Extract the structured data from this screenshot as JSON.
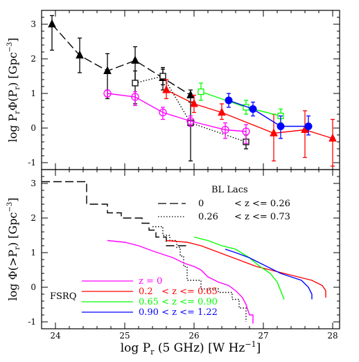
{
  "colors": {
    "bl_low": "#000000",
    "bl_high": "#000000",
    "fsrq_z0": "#ff00ff",
    "fsrq_z1": "#ff0000",
    "fsrq_z2": "#00ff00",
    "fsrq_z3": "#0000ff"
  },
  "chart_data": [
    {
      "type": "line",
      "panel": "top",
      "xlim": [
        23.8,
        28.1
      ],
      "ylim": [
        -1.2,
        3.4
      ],
      "ylabel_math": {
        "pre": "log P",
        "sub1": "r",
        "mid": "Φ(P",
        "sub2": "r",
        "post": ") [Gpc",
        "sup": "−3",
        "end": "]"
      },
      "yticks": [
        -1,
        0,
        1,
        2,
        3
      ],
      "series": [
        {
          "key": "bl_low",
          "marker": "tri-fill",
          "dash": "long",
          "points": [
            {
              "x": 23.95,
              "y": 3.0,
              "lo": 2.25,
              "hi": 3.25
            },
            {
              "x": 24.35,
              "y": 2.1,
              "lo": 1.6,
              "hi": 2.6
            },
            {
              "x": 24.75,
              "y": 1.65,
              "lo": 0.85,
              "hi": 2.15
            },
            {
              "x": 25.15,
              "y": 1.95,
              "lo": 1.35,
              "hi": 2.35
            },
            {
              "x": 25.55,
              "y": 1.45,
              "lo": 1.1,
              "hi": 1.75
            },
            {
              "x": 25.95,
              "y": 0.95,
              "lo": 0.75,
              "hi": 1.1
            }
          ]
        },
        {
          "key": "bl_high",
          "marker": "sq-open",
          "dash": "dot",
          "points": [
            {
              "x": 25.15,
              "y": 1.3,
              "lo": 0.7,
              "hi": 1.65
            },
            {
              "x": 25.55,
              "y": 1.5,
              "lo": 1.25,
              "hi": 1.7
            },
            {
              "x": 25.95,
              "y": 0.15,
              "lo": -0.95,
              "hi": 0.75
            },
            {
              "x": 26.75,
              "y": -0.4,
              "lo": -0.6,
              "hi": -0.2
            }
          ]
        },
        {
          "key": "fsrq_z0",
          "marker": "circ-open",
          "dash": "solid",
          "points": [
            {
              "x": 24.75,
              "y": 1.0,
              "lo": 0.9,
              "hi": 1.1
            },
            {
              "x": 25.15,
              "y": 0.9,
              "lo": 0.65,
              "hi": 1.05
            },
            {
              "x": 25.55,
              "y": 0.45,
              "lo": 0.25,
              "hi": 0.6
            },
            {
              "x": 25.95,
              "y": 0.2,
              "lo": 0.05,
              "hi": 0.35
            },
            {
              "x": 26.45,
              "y": -0.05,
              "lo": -0.3,
              "hi": 0.15
            },
            {
              "x": 26.75,
              "y": -0.1,
              "lo": -0.45,
              "hi": 0.1
            }
          ]
        },
        {
          "key": "fsrq_z1",
          "marker": "tri-fill",
          "dash": "solid",
          "points": [
            {
              "x": 25.6,
              "y": 1.1,
              "lo": 0.85,
              "hi": 1.4
            },
            {
              "x": 26.0,
              "y": 0.7,
              "lo": 0.45,
              "hi": 0.95
            },
            {
              "x": 26.4,
              "y": 0.45,
              "lo": 0.25,
              "hi": 0.7
            },
            {
              "x": 27.15,
              "y": -0.15,
              "lo": -0.95,
              "hi": 0.4
            },
            {
              "x": 27.6,
              "y": -0.05,
              "lo": -0.85,
              "hi": 0.5
            },
            {
              "x": 28.0,
              "y": -0.3,
              "lo": -1.1,
              "hi": 0.25
            }
          ]
        },
        {
          "key": "fsrq_z2",
          "marker": "sq-open",
          "dash": "solid",
          "points": [
            {
              "x": 26.1,
              "y": 1.05,
              "lo": 0.8,
              "hi": 1.3
            },
            {
              "x": 26.75,
              "y": 0.6,
              "lo": 0.4,
              "hi": 0.8
            },
            {
              "x": 27.25,
              "y": 0.35,
              "lo": 0.15,
              "hi": 0.55
            }
          ]
        },
        {
          "key": "fsrq_z3",
          "marker": "circ-fill",
          "dash": "solid",
          "points": [
            {
              "x": 26.5,
              "y": 0.8,
              "lo": 0.6,
              "hi": 1.0
            },
            {
              "x": 26.85,
              "y": 0.55,
              "lo": 0.35,
              "hi": 0.75
            },
            {
              "x": 27.25,
              "y": 0.05,
              "lo": -0.3,
              "hi": 0.35
            },
            {
              "x": 27.65,
              "y": 0.05,
              "lo": -0.2,
              "hi": 0.35
            }
          ]
        }
      ]
    },
    {
      "type": "line",
      "panel": "bottom",
      "xlim": [
        23.8,
        28.1
      ],
      "ylim": [
        -1.2,
        3.4
      ],
      "ylabel_math": {
        "pre": "log Φ(>P",
        "sub1": "r",
        "post": ") [Gpc",
        "sup": "−3",
        "end": "]"
      },
      "xlabel_math": {
        "pre": "log P",
        "sub1": "r",
        "post": " (5 GHz) [W Hz",
        "sup": "−1",
        "end": "]"
      },
      "yticks": [
        -1,
        0,
        1,
        2,
        3
      ],
      "xticks": [
        24,
        25,
        26,
        27,
        28
      ],
      "series": [
        {
          "key": "bl_low",
          "dash": "long",
          "points": [
            [
              23.8,
              3.05
            ],
            [
              24.45,
              3.05
            ],
            [
              24.45,
              2.4
            ],
            [
              24.75,
              2.4
            ],
            [
              24.75,
              2.15
            ],
            [
              24.95,
              2.15
            ],
            [
              24.95,
              2.0
            ],
            [
              25.25,
              2.0
            ],
            [
              25.25,
              1.85
            ],
            [
              25.35,
              1.85
            ],
            [
              25.35,
              1.65
            ],
            [
              25.45,
              1.65
            ],
            [
              25.45,
              1.45
            ],
            [
              25.6,
              1.45
            ],
            [
              25.6,
              1.2
            ],
            [
              25.9,
              1.2
            ]
          ]
        },
        {
          "key": "bl_high",
          "dash": "dot",
          "points": [
            [
              25.4,
              1.75
            ],
            [
              25.55,
              1.75
            ],
            [
              25.55,
              1.5
            ],
            [
              25.65,
              1.5
            ],
            [
              25.65,
              1.35
            ],
            [
              25.75,
              1.35
            ],
            [
              25.75,
              1.15
            ],
            [
              25.8,
              1.15
            ],
            [
              25.8,
              0.9
            ],
            [
              25.85,
              0.9
            ],
            [
              25.85,
              0.6
            ],
            [
              25.9,
              0.6
            ],
            [
              25.9,
              0.2
            ],
            [
              26.1,
              0.2
            ],
            [
              26.1,
              -0.05
            ],
            [
              26.35,
              -0.05
            ],
            [
              26.35,
              -0.15
            ],
            [
              26.55,
              -0.15
            ],
            [
              26.55,
              -0.35
            ],
            [
              26.65,
              -0.35
            ],
            [
              26.65,
              -0.6
            ],
            [
              26.75,
              -0.6
            ],
            [
              26.75,
              -1.0
            ]
          ]
        },
        {
          "key": "fsrq_z0",
          "dash": "solid",
          "points": [
            [
              24.75,
              1.35
            ],
            [
              25.0,
              1.3
            ],
            [
              25.2,
              1.2
            ],
            [
              25.4,
              1.05
            ],
            [
              25.55,
              0.95
            ],
            [
              25.7,
              0.85
            ],
            [
              25.85,
              0.7
            ],
            [
              26.0,
              0.6
            ],
            [
              26.1,
              0.5
            ],
            [
              26.2,
              0.3
            ],
            [
              26.35,
              0.15
            ],
            [
              26.5,
              0.05
            ],
            [
              26.6,
              -0.1
            ],
            [
              26.7,
              -0.3
            ],
            [
              26.75,
              -0.5
            ],
            [
              26.8,
              -0.8
            ],
            [
              26.85,
              -0.8
            ],
            [
              26.85,
              -1.05
            ]
          ]
        },
        {
          "key": "fsrq_z1",
          "dash": "solid",
          "points": [
            [
              25.6,
              1.35
            ],
            [
              25.9,
              1.3
            ],
            [
              26.1,
              1.2
            ],
            [
              26.3,
              1.05
            ],
            [
              26.5,
              0.9
            ],
            [
              26.7,
              0.75
            ],
            [
              26.9,
              0.6
            ],
            [
              27.1,
              0.5
            ],
            [
              27.3,
              0.4
            ],
            [
              27.5,
              0.3
            ],
            [
              27.7,
              0.2
            ],
            [
              27.85,
              0.05
            ],
            [
              27.9,
              -0.1
            ],
            [
              27.9,
              -0.3
            ]
          ]
        },
        {
          "key": "fsrq_z2",
          "dash": "solid",
          "points": [
            [
              26.0,
              1.45
            ],
            [
              26.2,
              1.35
            ],
            [
              26.4,
              1.2
            ],
            [
              26.6,
              1.1
            ],
            [
              26.8,
              0.85
            ],
            [
              26.95,
              0.6
            ],
            [
              27.1,
              0.4
            ],
            [
              27.2,
              0.15
            ],
            [
              27.25,
              -0.1
            ],
            [
              27.3,
              -0.35
            ]
          ]
        },
        {
          "key": "fsrq_z3",
          "dash": "solid",
          "points": [
            [
              26.45,
              1.1
            ],
            [
              26.6,
              1.0
            ],
            [
              26.8,
              0.85
            ],
            [
              26.95,
              0.7
            ],
            [
              27.1,
              0.55
            ],
            [
              27.25,
              0.4
            ],
            [
              27.4,
              0.3
            ],
            [
              27.55,
              0.2
            ],
            [
              27.65,
              0.0
            ],
            [
              27.7,
              -0.2
            ],
            [
              27.7,
              -0.35
            ]
          ]
        }
      ]
    }
  ],
  "legend_bl": {
    "title": "BL Lacs",
    "rows": [
      {
        "key": "bl_low",
        "dash": "long",
        "a": "0",
        "b": "< z <= 0.26"
      },
      {
        "key": "bl_high",
        "dash": "dot",
        "a": "0.26",
        "b": "< z <= 0.73"
      }
    ]
  },
  "legend_fsrq": {
    "title": "FSRQ",
    "rows": [
      {
        "key": "fsrq_z0",
        "text": "z = 0"
      },
      {
        "key": "fsrq_z1",
        "text": "0.2   < z <= 0.65"
      },
      {
        "key": "fsrq_z2",
        "text": "0.65 < z <= 0.90"
      },
      {
        "key": "fsrq_z3",
        "text": "0.90 < z <= 1.22"
      }
    ]
  }
}
